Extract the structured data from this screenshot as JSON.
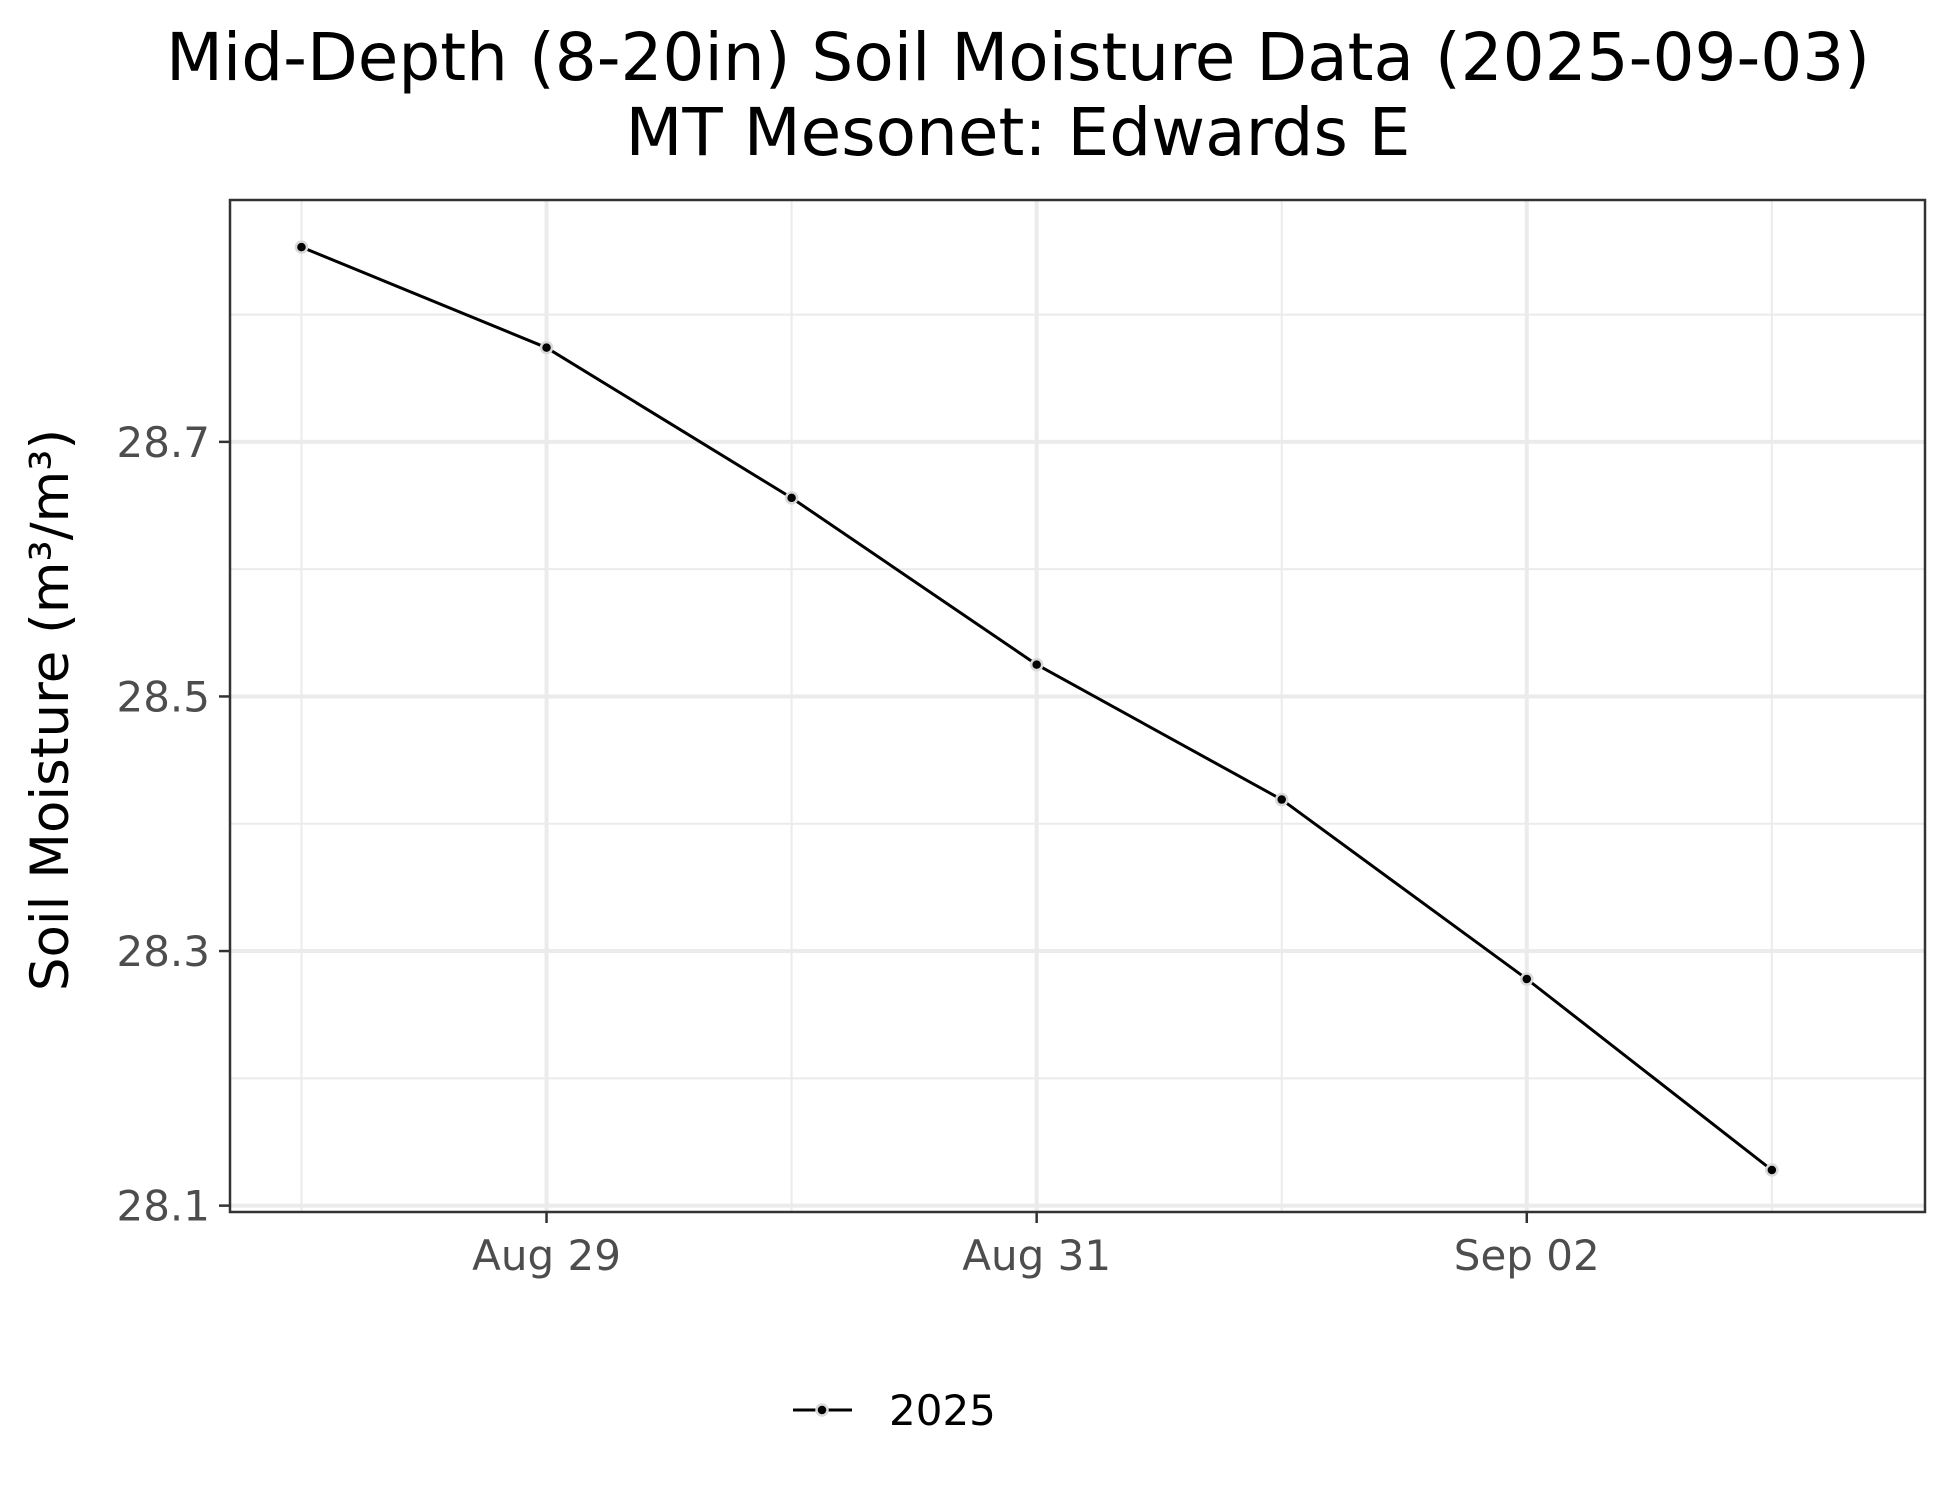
{
  "chart_data": {
    "type": "line",
    "title": "Mid-Depth (8-20in) Soil Moisture Data (2025-09-03)",
    "subtitle": "MT Mesonet: Edwards E",
    "xlabel": "",
    "ylabel": "Soil Moisture (m³/m³)",
    "x_ticks": [
      "Aug 29",
      "Aug 31",
      "Sep 02"
    ],
    "y_ticks": [
      "28.1",
      "28.3",
      "28.5",
      "28.7"
    ],
    "ylim": [
      28.095,
      28.89
    ],
    "xlim": [
      "2025-08-27 17:00",
      "2025-09-03 15:00"
    ],
    "grid": true,
    "legend_position": "bottom",
    "colors": {
      "line": "#000000",
      "point_outline": "#d9d9d9",
      "grid": "#ebebeb",
      "panel_border": "#333333"
    },
    "x": [
      "2025-08-28",
      "2025-08-29",
      "2025-08-30",
      "2025-08-31",
      "2025-09-01",
      "2025-09-02",
      "2025-09-03"
    ],
    "series": [
      {
        "name": "2025",
        "values": [
          28.853,
          28.774,
          28.656,
          28.525,
          28.419,
          28.278,
          28.128
        ]
      }
    ]
  }
}
